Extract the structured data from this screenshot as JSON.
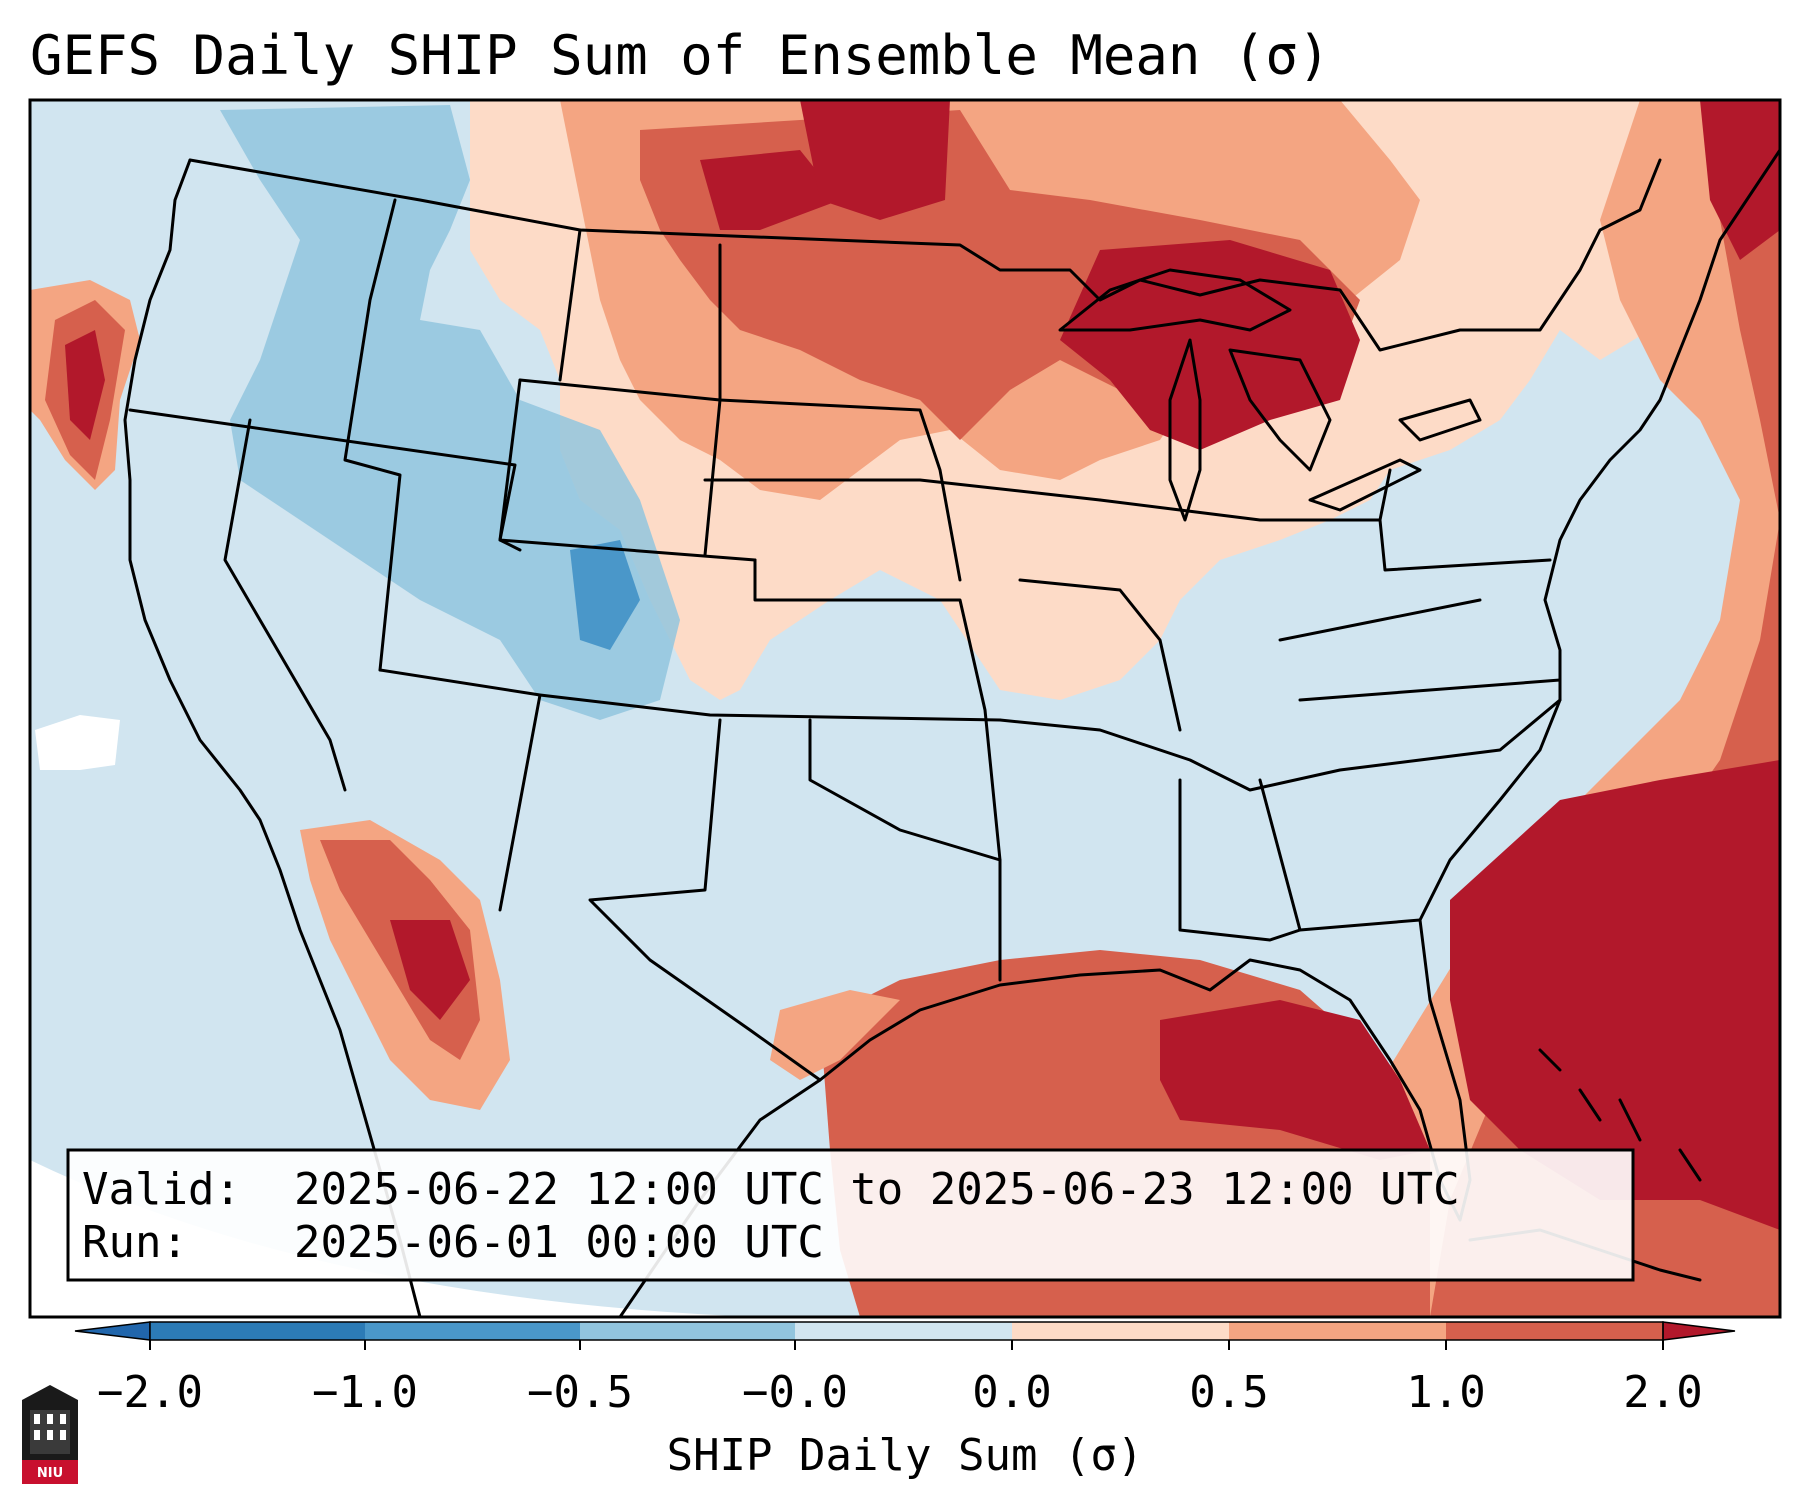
{
  "title": "GEFS Daily SHIP Sum of Ensemble Mean (σ)",
  "info": {
    "valid_label": "Valid:",
    "valid_value": "2025-06-22 12:00 UTC to 2025-06-23 12:00 UTC",
    "run_label": "Run:",
    "run_value": "2025-06-01 00:00 UTC"
  },
  "colorbar": {
    "label": "SHIP Daily Sum (σ)",
    "ticks": [
      "−2.0",
      "−1.0",
      "−0.5",
      "−0.0",
      "0.0",
      "0.5",
      "1.0",
      "2.0"
    ],
    "colors": [
      "#2c7bb6",
      "#4a97c9",
      "#92c5de",
      "#d1e5f0",
      "#fddbc7",
      "#f4a582",
      "#d6604d",
      "#b2182b"
    ],
    "extend": "both"
  },
  "logo": {
    "text": "NIU",
    "icon": "university-building-icon"
  },
  "palette": {
    "frame": "#000000",
    "ocean_outside": "#ffffff"
  }
}
